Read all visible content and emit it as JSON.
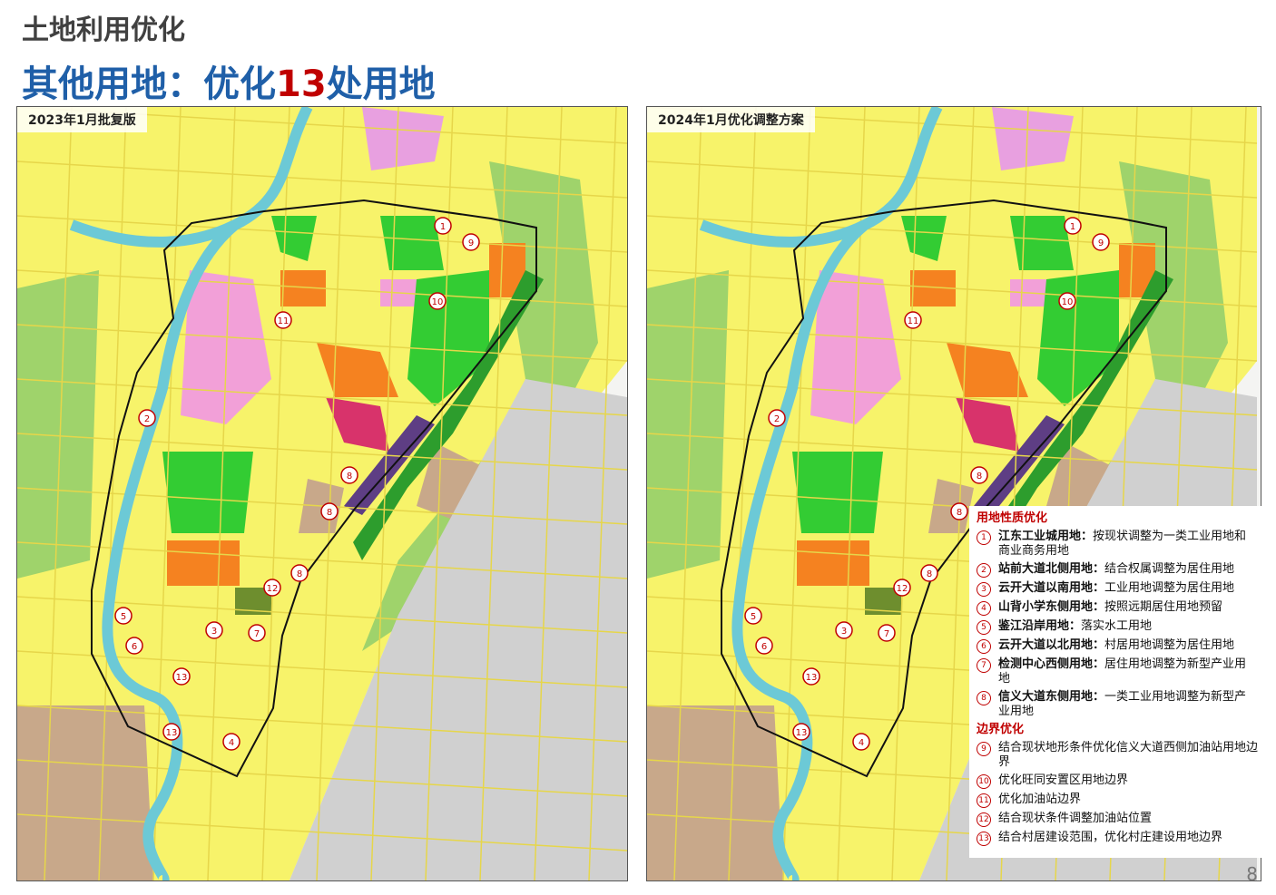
{
  "header": {
    "section": "土地利用优化",
    "title_prefix": "其他用地：优化",
    "title_count": "13",
    "title_suffix": "处用地"
  },
  "maps": [
    {
      "label": "2023年1月批复版",
      "markers": [
        "1",
        "9",
        "10",
        "11",
        "2",
        "8",
        "8",
        "8",
        "12",
        "5",
        "6",
        "3",
        "7",
        "13",
        "13",
        "4"
      ]
    },
    {
      "label": "2024年1月优化调整方案",
      "markers": [
        "1",
        "9",
        "10",
        "11",
        "2",
        "8",
        "8",
        "8",
        "12",
        "5",
        "6",
        "3",
        "7",
        "13",
        "13",
        "4"
      ]
    }
  ],
  "legend": {
    "group1_title": "用地性质优化",
    "group1_items": [
      {
        "num": "1",
        "name": "江东工业城用地：",
        "desc": "按现状调整为一类工业用地和商业商务用地"
      },
      {
        "num": "2",
        "name": "站前大道北侧用地：",
        "desc": "结合权属调整为居住用地"
      },
      {
        "num": "3",
        "name": "云开大道以南用地：",
        "desc": "工业用地调整为居住用地"
      },
      {
        "num": "4",
        "name": "山背小学东侧用地：",
        "desc": "按照远期居住用地预留"
      },
      {
        "num": "5",
        "name": "鉴江沿岸用地：",
        "desc": "落实水工用地"
      },
      {
        "num": "6",
        "name": "云开大道以北用地：",
        "desc": "村居用地调整为居住用地"
      },
      {
        "num": "7",
        "name": "检测中心西侧用地：",
        "desc": "居住用地调整为新型产业用地"
      },
      {
        "num": "8",
        "name": "信义大道东侧用地：",
        "desc": "一类工业用地调整为新型产业用地"
      }
    ],
    "group2_title": "边界优化",
    "group2_items": [
      {
        "num": "9",
        "desc": "结合现状地形条件优化信义大道西侧加油站用地边界"
      },
      {
        "num": "10",
        "desc": "优化旺同安置区用地边界"
      },
      {
        "num": "11",
        "desc": "优化加油站边界"
      },
      {
        "num": "12",
        "desc": "结合现状条件调整加油站位置"
      },
      {
        "num": "13",
        "desc": "结合村居建设范围，优化村庄建设用地边界"
      }
    ]
  },
  "page_number": "8"
}
